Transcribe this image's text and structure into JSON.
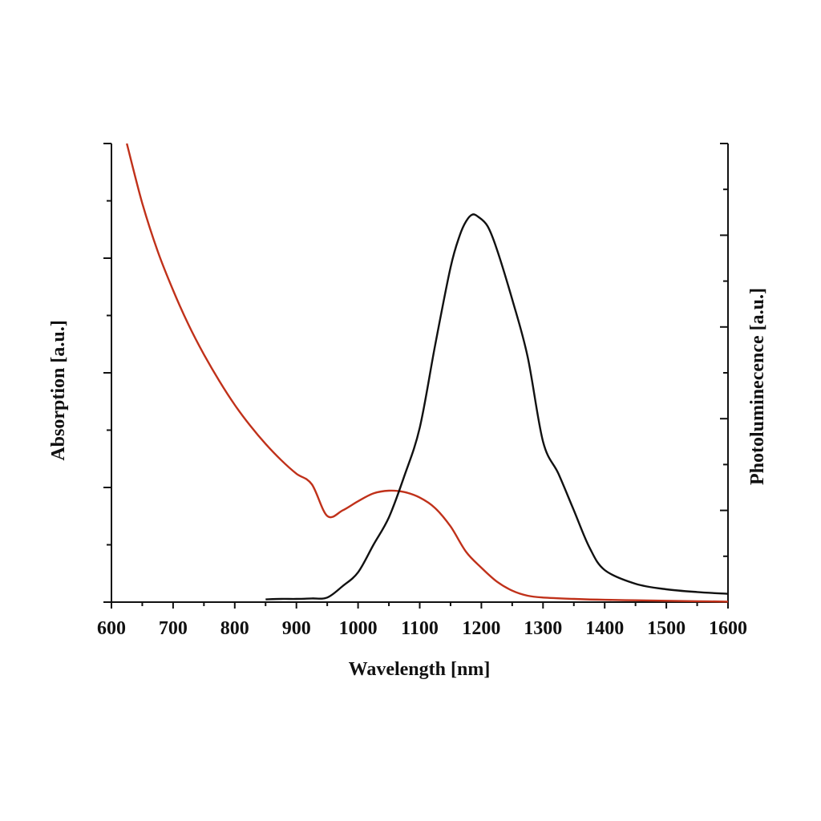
{
  "chart_data": {
    "type": "line",
    "title": "",
    "xlabel": "Wavelength [nm]",
    "ylabel_left": "Absorption [a.u.]",
    "ylabel_right": "Photoluminecence [a.u.]",
    "xlim": [
      600,
      1600
    ],
    "x_ticks": [
      600,
      700,
      800,
      900,
      1000,
      1100,
      1200,
      1300,
      1400,
      1500,
      1600
    ],
    "y_left_lim": [
      0,
      1
    ],
    "y_right_lim": [
      0,
      1
    ],
    "y_tick_labels_shown": false,
    "grid": false,
    "legend": "none",
    "series": [
      {
        "axis": "left",
        "color": "#c0311a",
        "x": [
          625,
          650,
          675,
          700,
          725,
          750,
          775,
          800,
          825,
          850,
          875,
          900,
          925,
          950,
          975,
          1000,
          1025,
          1050,
          1075,
          1100,
          1125,
          1150,
          1175,
          1200,
          1225,
          1250,
          1275,
          1300,
          1350,
          1400,
          1450,
          1500,
          1550,
          1600
        ],
        "y": [
          1.0,
          0.87,
          0.765,
          0.68,
          0.605,
          0.54,
          0.482,
          0.43,
          0.385,
          0.345,
          0.31,
          0.28,
          0.257,
          0.188,
          0.2,
          0.22,
          0.237,
          0.243,
          0.24,
          0.228,
          0.205,
          0.165,
          0.11,
          0.075,
          0.045,
          0.025,
          0.014,
          0.01,
          0.007,
          0.005,
          0.004,
          0.003,
          0.002,
          0.001
        ]
      },
      {
        "axis": "right",
        "color": "#111111",
        "x": [
          850,
          875,
          900,
          925,
          950,
          975,
          1000,
          1025,
          1050,
          1075,
          1100,
          1125,
          1150,
          1165,
          1175,
          1185,
          1195,
          1210,
          1225,
          1250,
          1275,
          1300,
          1325,
          1350,
          1375,
          1400,
          1450,
          1500,
          1550,
          1600
        ],
        "y": [
          0.006,
          0.007,
          0.007,
          0.008,
          0.01,
          0.035,
          0.065,
          0.125,
          0.185,
          0.275,
          0.38,
          0.56,
          0.73,
          0.8,
          0.83,
          0.845,
          0.84,
          0.82,
          0.77,
          0.66,
          0.535,
          0.35,
          0.28,
          0.2,
          0.12,
          0.07,
          0.04,
          0.028,
          0.022,
          0.018
        ]
      }
    ]
  }
}
